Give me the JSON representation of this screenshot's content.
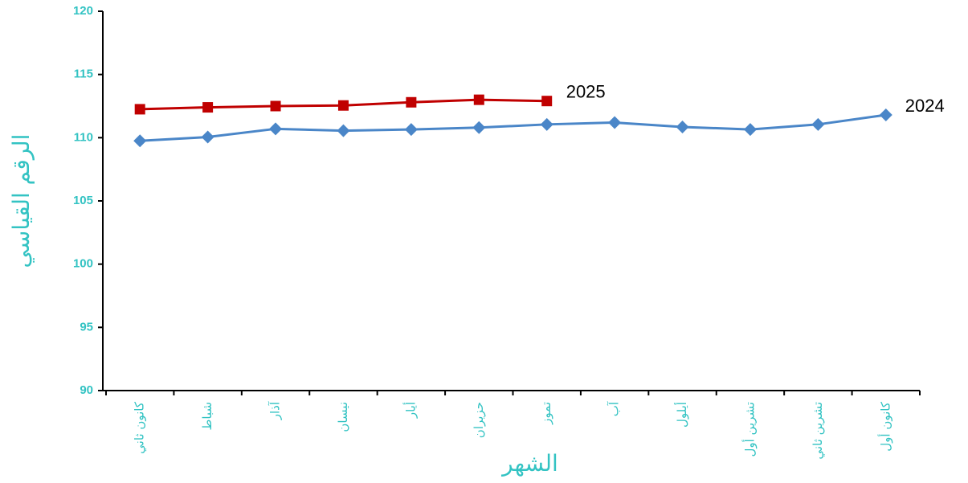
{
  "chart_data": {
    "type": "line",
    "x_label": "الشهر",
    "y_label": "الرقم القياسي",
    "categories": [
      "كانون ثاني",
      "شباط",
      "آذار",
      "نيسان",
      "أيار",
      "حزيران",
      "تموز",
      "آب",
      "أيلول",
      "تشرين أول",
      "تشرين ثاني",
      "كانون أول"
    ],
    "series": [
      {
        "name": "2024",
        "color": "#4a86c8",
        "marker": "diamond",
        "values": [
          109.75,
          110.05,
          110.7,
          110.55,
          110.65,
          110.8,
          111.05,
          111.2,
          110.85,
          110.65,
          111.05,
          111.8
        ]
      },
      {
        "name": "2025",
        "color": "#c00000",
        "marker": "square",
        "values": [
          112.25,
          112.4,
          112.5,
          112.55,
          112.8,
          113.0,
          112.9,
          null,
          null,
          null,
          null,
          null
        ]
      }
    ],
    "ylim": [
      90,
      120
    ],
    "yticks": [
      90,
      95,
      100,
      105,
      110,
      115,
      120
    ]
  }
}
